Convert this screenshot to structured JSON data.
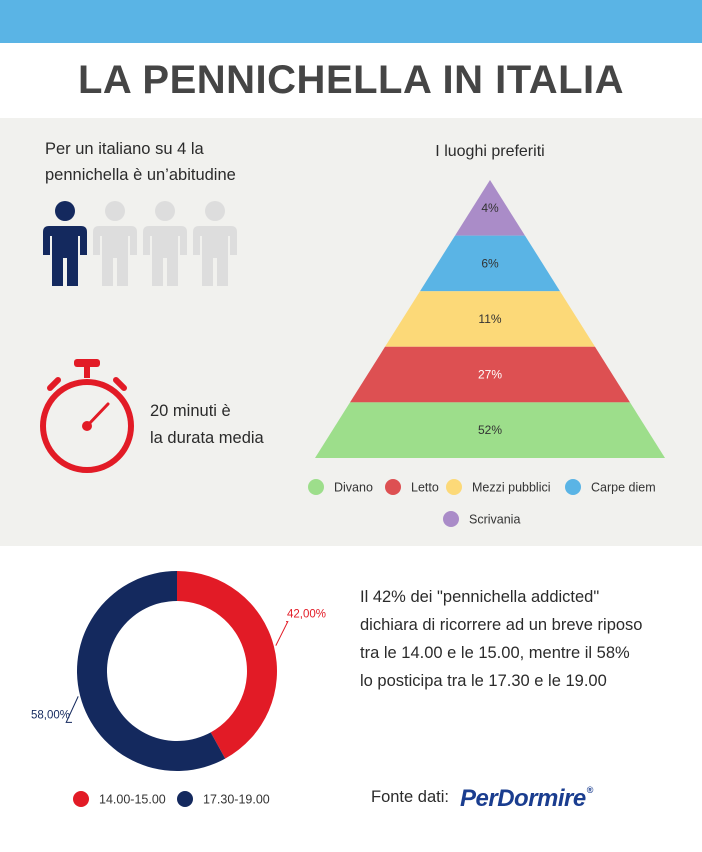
{
  "title": "LA PENNICHELLA IN ITALIA",
  "stat": {
    "line1": "Per un italiano su 4  la",
    "line2": "pennichella è un’abitudine",
    "highlighted_of": 1,
    "total_people": 4
  },
  "duration": {
    "line1": "20 minuti è",
    "line2": "la durata media"
  },
  "chart_data": [
    {
      "type": "pyramid",
      "title": "I luoghi preferiti",
      "series": [
        {
          "name": "Divano",
          "value": 52,
          "label": "52%",
          "color": "#9dde8b"
        },
        {
          "name": "Letto",
          "value": 27,
          "label": "27%",
          "color": "#dd5052"
        },
        {
          "name": "Mezzi pubblici",
          "value": 11,
          "label": "11%",
          "color": "#fcd978"
        },
        {
          "name": "Carpe diem",
          "value": 6,
          "label": "6%",
          "color": "#5ab4e5"
        },
        {
          "name": "Scrivania",
          "value": 4,
          "label": "4%",
          "color": "#aa8cc8"
        }
      ]
    },
    {
      "type": "pie",
      "donut": true,
      "categories": [
        "14.00-15.00",
        "17.30-19.00"
      ],
      "values": [
        42,
        58
      ],
      "labels": [
        "42,00%",
        "58,00%"
      ],
      "colors": [
        "#e21b26",
        "#14295e"
      ]
    }
  ],
  "description": {
    "line1": "Il 42% dei \"pennichella addicted\"",
    "line2": "dichiara di ricorrere ad un breve riposo",
    "line3": "tra le 14.00 e le 15.00,  mentre il 58%",
    "line4": "lo posticipa tra le 17.30 e le 19.00"
  },
  "source": {
    "label": "Fonte dati:",
    "brand": "PerDormire",
    "reg": "®"
  },
  "colors": {
    "topbar": "#5ab4e5",
    "panel": "#f1f1ee",
    "person_active": "#14295e",
    "person_inactive": "#dddddd",
    "stopwatch": "#e21b26"
  }
}
